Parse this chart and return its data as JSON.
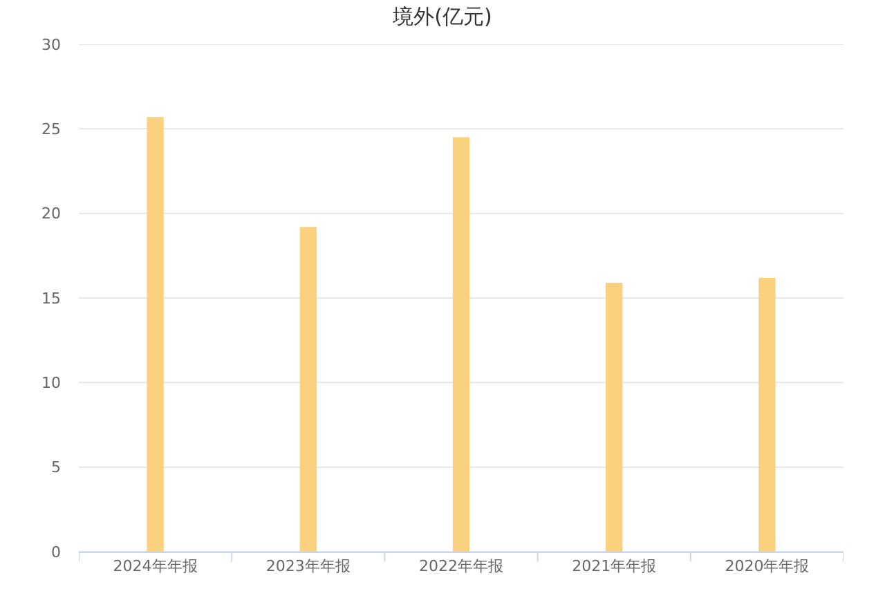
{
  "chart_data": {
    "type": "bar",
    "title": "境外(亿元)",
    "categories": [
      "2024年年报",
      "2023年年报",
      "2022年年报",
      "2021年年报",
      "2020年年报"
    ],
    "values": [
      25.7,
      19.2,
      24.5,
      15.9,
      16.2
    ],
    "color": "#f9d17f",
    "ylim": [
      0,
      30
    ],
    "yticks": [
      0,
      5,
      10,
      15,
      20,
      25,
      30
    ],
    "grid": "y"
  }
}
